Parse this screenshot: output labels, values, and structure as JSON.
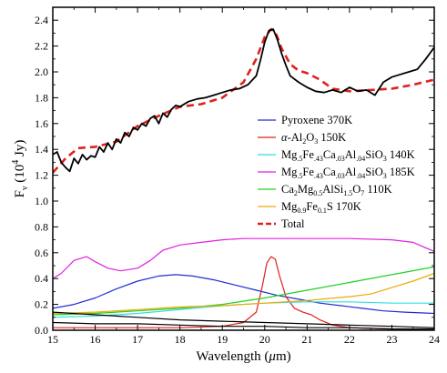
{
  "chart_data": {
    "type": "line",
    "xlabel_html": "Wavelength (<tspan font-style='italic'>μ</tspan>m)",
    "xlabel": "Wavelength (μm)",
    "ylabel": "F_ν (10^4 Jy)",
    "xlim": [
      15,
      24
    ],
    "ylim": [
      0,
      2.5
    ],
    "xticks": [
      15,
      16,
      17,
      18,
      19,
      20,
      21,
      22,
      23,
      24
    ],
    "yticks": [
      0.0,
      0.2,
      0.4,
      0.6,
      0.8,
      1.0,
      1.2,
      1.4,
      1.6,
      1.8,
      2.0,
      2.2,
      2.4
    ],
    "ytick_labels": [
      "0.0",
      "0.2",
      "0.4",
      "0.6",
      "0.8",
      "1.0",
      "1.2",
      "1.4",
      "1.6",
      "1.8",
      "2.0",
      "2.2",
      "2.4"
    ],
    "legend_position": "middle-right",
    "series": [
      {
        "name": "Pyroxene 370K",
        "name_html": "Pyroxene 370K",
        "color": "#1f2ed1",
        "style": "solid",
        "x": [
          15.0,
          15.5,
          16.0,
          16.5,
          17.0,
          17.5,
          17.9,
          18.3,
          18.8,
          19.3,
          19.8,
          20.3,
          20.8,
          21.3,
          21.8,
          22.3,
          22.8,
          23.3,
          24.0
        ],
        "y": [
          0.17,
          0.2,
          0.25,
          0.32,
          0.38,
          0.42,
          0.43,
          0.42,
          0.39,
          0.35,
          0.31,
          0.27,
          0.24,
          0.21,
          0.19,
          0.17,
          0.15,
          0.14,
          0.13
        ]
      },
      {
        "name": "α-Al2O3 150K",
        "name_html": "<tspan font-style='italic'>α</tspan>-Al<tspan font-size='8' dy='3'>2</tspan><tspan dy='-3'>O</tspan><tspan font-size='8' dy='3'>3</tspan><tspan dy='-3'> 150K</tspan>",
        "color": "#e0201c",
        "style": "solid",
        "x": [
          15.0,
          16.0,
          17.0,
          18.0,
          19.0,
          19.5,
          19.8,
          19.95,
          20.05,
          20.15,
          20.25,
          20.35,
          20.5,
          20.7,
          20.9,
          21.1,
          21.3,
          21.6,
          22.0,
          23.0,
          24.0
        ],
        "y": [
          0.02,
          0.02,
          0.02,
          0.02,
          0.03,
          0.06,
          0.14,
          0.35,
          0.52,
          0.57,
          0.55,
          0.42,
          0.26,
          0.17,
          0.14,
          0.12,
          0.08,
          0.04,
          0.02,
          0.01,
          0.01
        ]
      },
      {
        "name": "Mg.5Fe.43Ca.03Al.04SiO3 140K",
        "name_html": "Mg<tspan font-size='8' dy='3'>.5</tspan><tspan dy='-3'>Fe</tspan><tspan font-size='8' dy='3'>.43</tspan><tspan dy='-3'>Ca</tspan><tspan font-size='8' dy='3'>.03</tspan><tspan dy='-3'>Al</tspan><tspan font-size='8' dy='3'>.04</tspan><tspan dy='-3'>SiO</tspan><tspan font-size='8' dy='3'>3</tspan><tspan dy='-3'> 140K</tspan>",
        "color": "#33dede",
        "style": "solid",
        "x": [
          15.0,
          16.0,
          17.0,
          18.0,
          19.0,
          20.0,
          21.0,
          22.0,
          23.0,
          24.0
        ],
        "y": [
          0.1,
          0.11,
          0.13,
          0.16,
          0.19,
          0.21,
          0.22,
          0.22,
          0.21,
          0.21
        ]
      },
      {
        "name": "Mg.5Fe.43Ca.03Al.04SiO3 185K",
        "name_html": "Mg<tspan font-size='8' dy='3'>.5</tspan><tspan dy='-3'>Fe</tspan><tspan font-size='8' dy='3'>.43</tspan><tspan dy='-3'>Ca</tspan><tspan font-size='8' dy='3'>.03</tspan><tspan dy='-3'>Al</tspan><tspan font-size='8' dy='3'>.04</tspan><tspan dy='-3'>SiO</tspan><tspan font-size='8' dy='3'>3</tspan><tspan dy='-3'> 185K</tspan>",
        "color": "#e020e0",
        "style": "solid",
        "x": [
          15.0,
          15.2,
          15.5,
          15.8,
          16.0,
          16.3,
          16.6,
          17.0,
          17.3,
          17.6,
          18.0,
          18.5,
          19.0,
          19.5,
          20.0,
          21.0,
          22.0,
          23.0,
          23.5,
          24.0
        ],
        "y": [
          0.4,
          0.44,
          0.54,
          0.57,
          0.53,
          0.48,
          0.46,
          0.48,
          0.54,
          0.62,
          0.66,
          0.68,
          0.7,
          0.71,
          0.71,
          0.71,
          0.71,
          0.7,
          0.68,
          0.61
        ]
      },
      {
        "name": "Ca2Mg0.5AlSi1.5O7 110K",
        "name_html": "Ca<tspan font-size='8' dy='3'>2</tspan><tspan dy='-3'>Mg</tspan><tspan font-size='8' dy='3'>0.5</tspan><tspan dy='-3'>AlSi</tspan><tspan font-size='8' dy='3'>1.5</tspan><tspan dy='-3'>O</tspan><tspan font-size='8' dy='3'>7</tspan><tspan dy='-3'> 110K</tspan>",
        "color": "#22d022",
        "style": "solid",
        "x": [
          15.0,
          16.0,
          17.0,
          18.0,
          19.0,
          20.0,
          21.0,
          22.0,
          23.0,
          24.0
        ],
        "y": [
          0.12,
          0.13,
          0.15,
          0.17,
          0.2,
          0.25,
          0.31,
          0.37,
          0.43,
          0.49
        ]
      },
      {
        "name": "Mg0.9Fe0.1S 170K",
        "name_html": "Mg<tspan font-size='8' dy='3'>0.9</tspan><tspan dy='-3'>Fe</tspan><tspan font-size='8' dy='3'>0.1</tspan><tspan dy='-3'>S 170K</tspan>",
        "color": "#f0a800",
        "style": "solid",
        "x": [
          15.0,
          16.0,
          17.0,
          18.0,
          19.0,
          20.0,
          21.0,
          22.0,
          22.5,
          23.0,
          23.5,
          24.0
        ],
        "y": [
          0.13,
          0.14,
          0.16,
          0.18,
          0.19,
          0.21,
          0.23,
          0.26,
          0.28,
          0.33,
          0.38,
          0.44
        ]
      },
      {
        "name": "Total",
        "name_html": "Total",
        "color": "#e0201c",
        "style": "dashed",
        "x": [
          15.0,
          15.3,
          15.6,
          16.0,
          16.5,
          17.0,
          17.5,
          18.0,
          18.5,
          19.0,
          19.5,
          19.8,
          20.0,
          20.15,
          20.25,
          20.4,
          20.6,
          20.8,
          21.0,
          21.3,
          21.6,
          22.0,
          22.5,
          23.0,
          23.5,
          24.0
        ],
        "y": [
          1.22,
          1.33,
          1.41,
          1.42,
          1.46,
          1.58,
          1.66,
          1.73,
          1.75,
          1.8,
          1.92,
          2.1,
          2.27,
          2.33,
          2.31,
          2.18,
          2.06,
          2.01,
          1.99,
          1.94,
          1.87,
          1.85,
          1.86,
          1.87,
          1.9,
          1.94
        ]
      },
      {
        "name": "",
        "name_html": "",
        "color": "#000000",
        "style": "solid",
        "role": "observed spectrum",
        "x": [
          15.0,
          15.1,
          15.2,
          15.3,
          15.4,
          15.5,
          15.6,
          15.7,
          15.8,
          15.9,
          16.0,
          16.1,
          16.2,
          16.3,
          16.4,
          16.5,
          16.6,
          16.7,
          16.8,
          16.9,
          17.0,
          17.1,
          17.2,
          17.3,
          17.4,
          17.5,
          17.6,
          17.7,
          17.8,
          17.9,
          18.0,
          18.2,
          18.4,
          18.6,
          18.8,
          19.0,
          19.2,
          19.4,
          19.6,
          19.8,
          19.9,
          20.0,
          20.1,
          20.2,
          20.3,
          20.4,
          20.5,
          20.6,
          20.8,
          21.0,
          21.2,
          21.4,
          21.6,
          21.8,
          22.0,
          22.2,
          22.4,
          22.6,
          22.8,
          23.0,
          23.2,
          23.4,
          23.6,
          23.8,
          24.0
        ],
        "y": [
          1.36,
          1.38,
          1.3,
          1.26,
          1.23,
          1.33,
          1.29,
          1.36,
          1.32,
          1.35,
          1.34,
          1.42,
          1.38,
          1.45,
          1.4,
          1.48,
          1.45,
          1.53,
          1.5,
          1.57,
          1.55,
          1.6,
          1.58,
          1.64,
          1.66,
          1.6,
          1.68,
          1.65,
          1.71,
          1.74,
          1.73,
          1.77,
          1.79,
          1.8,
          1.82,
          1.84,
          1.86,
          1.87,
          1.9,
          1.97,
          2.09,
          2.23,
          2.32,
          2.33,
          2.25,
          2.14,
          2.05,
          1.97,
          1.92,
          1.88,
          1.85,
          1.84,
          1.86,
          1.84,
          1.88,
          1.85,
          1.86,
          1.82,
          1.92,
          1.96,
          1.98,
          2.0,
          2.02,
          2.1,
          2.19
        ]
      },
      {
        "name": "",
        "name_html": "",
        "color": "#000000",
        "style": "solid",
        "role": "unlabeled dark component",
        "x": [
          15.0,
          16.0,
          17.0,
          18.0,
          19.0,
          20.0,
          21.0,
          22.0,
          23.0,
          24.0
        ],
        "y": [
          0.14,
          0.12,
          0.1,
          0.08,
          0.07,
          0.06,
          0.05,
          0.04,
          0.03,
          0.02
        ]
      },
      {
        "name": "",
        "name_html": "",
        "color": "#000000",
        "style": "solid",
        "role": "unlabeled dark component",
        "x": [
          15.0,
          16.0,
          17.0,
          18.0,
          19.0,
          20.0,
          21.0,
          22.0,
          23.0,
          24.0
        ],
        "y": [
          0.06,
          0.05,
          0.05,
          0.04,
          0.03,
          0.03,
          0.02,
          0.02,
          0.01,
          0.01
        ]
      }
    ]
  }
}
